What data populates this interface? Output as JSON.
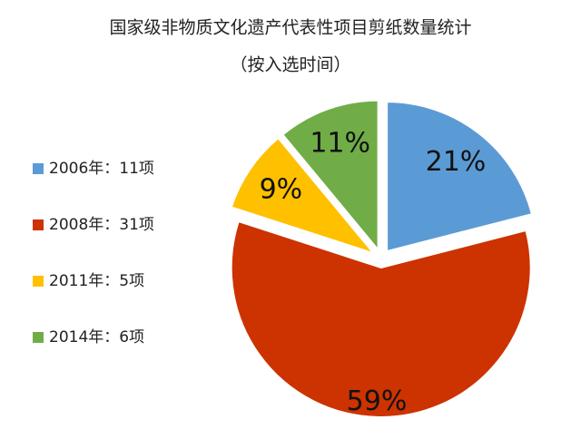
{
  "chart_data": {
    "type": "pie",
    "title": "国家级非物质文化遗产代表性项目剪纸数量统计",
    "subtitle": "（按入选时间）",
    "categories": [
      "2006年：11项",
      "2008年：31项",
      "2011年：5项",
      "2014年：6项"
    ],
    "values": [
      21,
      59,
      9,
      11
    ],
    "value_labels": [
      "21%",
      "59%",
      "9%",
      "11%"
    ],
    "colors": [
      "#5b9bd5",
      "#cc3300",
      "#ffc000",
      "#70ad47"
    ],
    "legend": "left"
  }
}
